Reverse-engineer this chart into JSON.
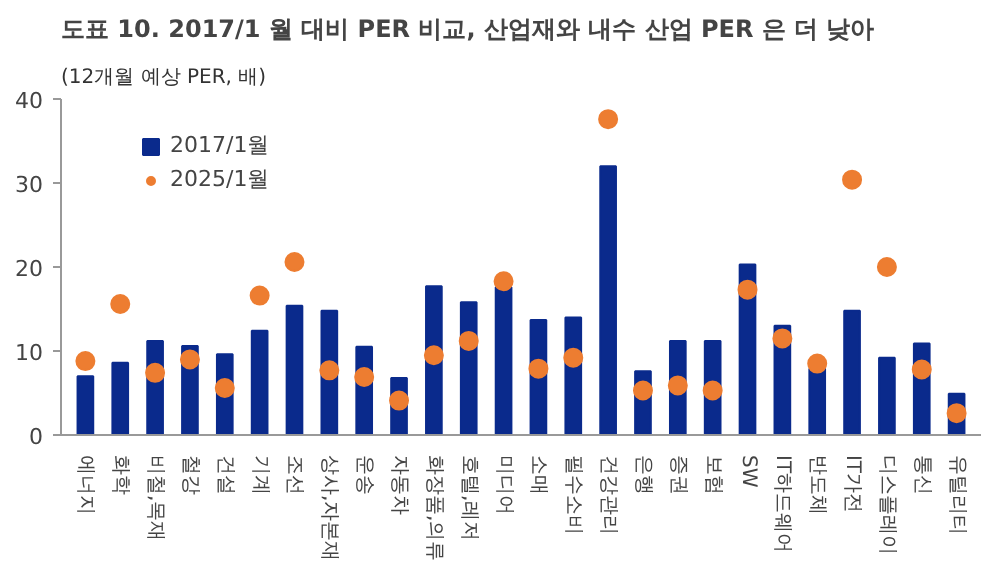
{
  "chart_data": {
    "type": "bar",
    "title": "도표 10.  2017/1 월 대비 PER 비교, 산업재와 내수 산업 PER 은 더 낮아",
    "ylabel": "(12개월 예상 PER, 배)",
    "categories": [
      "에너지",
      "화학",
      "비철,목재",
      "철강",
      "건설",
      "기계",
      "조선",
      "상사,자본재",
      "운송",
      "자동차",
      "화장품,의류",
      "호텔,레저",
      "미디어",
      "소매",
      "필수소비",
      "건강관리",
      "은행",
      "증권",
      "보험",
      "SW",
      "IT하드웨어",
      "반도체",
      "IT가전",
      "디스플레이",
      "통신",
      "유틸리티"
    ],
    "series": [
      {
        "name": "2017/1월",
        "color": "#0a2a8c",
        "values": [
          7.0,
          8.6,
          11.2,
          10.6,
          9.6,
          12.4,
          15.4,
          14.8,
          10.5,
          6.8,
          17.7,
          15.8,
          17.6,
          13.7,
          14.0,
          32.0,
          7.6,
          11.2,
          11.2,
          20.3,
          13.0,
          7.9,
          14.8,
          9.2,
          10.9,
          4.9
        ]
      },
      {
        "name": "2025/1월",
        "type": "scatter",
        "color": "#ed7d31",
        "marker": "circle",
        "values": [
          8.8,
          15.6,
          7.4,
          9.0,
          5.6,
          16.6,
          20.6,
          7.7,
          6.9,
          4.1,
          9.5,
          11.2,
          18.3,
          7.9,
          9.2,
          37.6,
          5.3,
          5.9,
          5.3,
          17.3,
          11.5,
          8.5,
          30.4,
          20.0,
          7.8,
          2.6
        ]
      }
    ],
    "ylim": [
      0,
      40
    ],
    "yticks": [
      0,
      10,
      20,
      30,
      40
    ],
    "grid": false,
    "legend": "top left"
  }
}
